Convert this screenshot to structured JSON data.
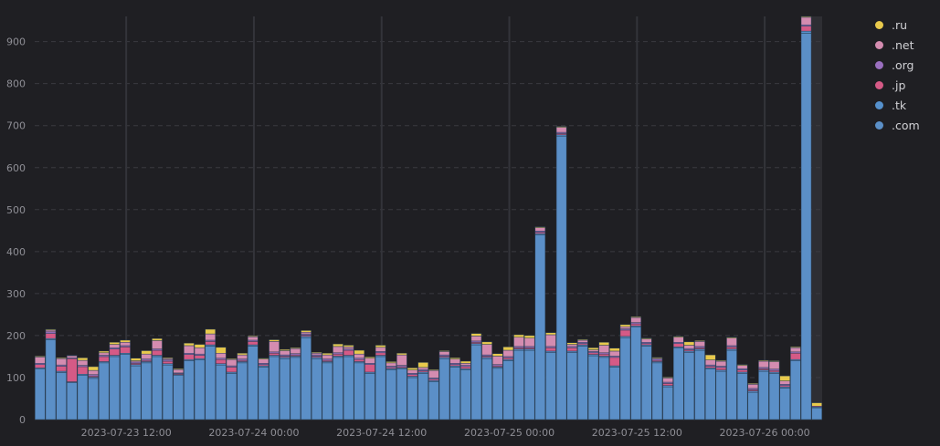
{
  "chart_data": {
    "type": "bar",
    "stacked": true,
    "title": "",
    "ylim": [
      0,
      960
    ],
    "yticks": [
      0,
      100,
      200,
      300,
      400,
      500,
      600,
      700,
      800,
      900
    ],
    "xticks": [
      "2023-07-23 12:00",
      "2023-07-24 00:00",
      "2023-07-24 12:00",
      "2023-07-25 00:00",
      "2023-07-25 12:00",
      "2023-07-26 00:00"
    ],
    "xtick_bar_index": [
      8,
      20,
      32,
      44,
      56,
      68
    ],
    "grid": true,
    "legend_position": "right",
    "highlighted_last_bar": true,
    "series": [
      {
        "name": ".com",
        "color": "#5b8fc7",
        "values": [
          120,
          190,
          112,
          88,
          105,
          98,
          135,
          150,
          155,
          128,
          135,
          150,
          130,
          105,
          140,
          142,
          175,
          130,
          110,
          135,
          175,
          125,
          150,
          145,
          148,
          195,
          145,
          135,
          148,
          150,
          135,
          110,
          150,
          118,
          120,
          100,
          110,
          90,
          145,
          125,
          118,
          178,
          145,
          122,
          140,
          165,
          165,
          440,
          160,
          675,
          160,
          175,
          152,
          148,
          125,
          195,
          220,
          175,
          135,
          78,
          170,
          160,
          165,
          120,
          115,
          165,
          110,
          65,
          115,
          110,
          75,
          140,
          920,
          28
        ]
      },
      {
        "name": ".tk",
        "color": "#5590cc",
        "values": [
          3,
          3,
          3,
          2,
          3,
          3,
          3,
          3,
          3,
          3,
          3,
          3,
          3,
          2,
          3,
          3,
          3,
          3,
          3,
          3,
          3,
          3,
          3,
          3,
          3,
          3,
          3,
          3,
          3,
          3,
          3,
          3,
          3,
          3,
          3,
          3,
          3,
          3,
          3,
          3,
          3,
          3,
          3,
          3,
          3,
          3,
          3,
          3,
          3,
          3,
          3,
          3,
          3,
          3,
          3,
          3,
          3,
          3,
          3,
          3,
          3,
          3,
          3,
          3,
          3,
          3,
          3,
          3,
          3,
          3,
          3,
          3,
          5,
          2
        ]
      },
      {
        "name": ".jp",
        "color": "#d55a86",
        "values": [
          8,
          12,
          12,
          55,
          18,
          3,
          12,
          15,
          15,
          3,
          3,
          12,
          6,
          2,
          12,
          8,
          8,
          10,
          12,
          3,
          8,
          3,
          5,
          3,
          3,
          3,
          3,
          3,
          5,
          12,
          5,
          18,
          6,
          3,
          3,
          4,
          3,
          3,
          3,
          3,
          5,
          3,
          3,
          3,
          4,
          3,
          3,
          3,
          8,
          3,
          8,
          3,
          4,
          5,
          20,
          15,
          5,
          3,
          3,
          5,
          8,
          3,
          3,
          4,
          6,
          5,
          5,
          3,
          3,
          4,
          3,
          15,
          12,
          2
        ]
      },
      {
        "name": ".org",
        "color": "#9a6fbf",
        "values": [
          3,
          4,
          3,
          2,
          3,
          3,
          3,
          3,
          3,
          3,
          3,
          3,
          3,
          2,
          3,
          3,
          3,
          3,
          3,
          3,
          3,
          3,
          3,
          3,
          3,
          3,
          3,
          3,
          3,
          3,
          3,
          3,
          3,
          3,
          3,
          3,
          3,
          3,
          3,
          3,
          3,
          3,
          3,
          3,
          3,
          3,
          3,
          3,
          3,
          3,
          3,
          3,
          3,
          3,
          3,
          3,
          3,
          3,
          3,
          3,
          3,
          3,
          3,
          3,
          3,
          3,
          3,
          3,
          3,
          3,
          3,
          3,
          3,
          0
        ]
      },
      {
        "name": ".net",
        "color": "#d48cb0",
        "values": [
          15,
          4,
          15,
          5,
          12,
          10,
          6,
          8,
          8,
          3,
          12,
          20,
          3,
          8,
          18,
          15,
          15,
          12,
          15,
          10,
          8,
          10,
          25,
          10,
          12,
          4,
          4,
          10,
          15,
          5,
          10,
          12,
          10,
          8,
          25,
          8,
          5,
          18,
          8,
          10,
          5,
          12,
          25,
          20,
          15,
          22,
          20,
          8,
          28,
          12,
          5,
          5,
          4,
          18,
          12,
          5,
          12,
          8,
          2,
          10,
          12,
          8,
          12,
          12,
          12,
          18,
          8,
          10,
          15,
          18,
          8,
          10,
          18,
          0
        ]
      },
      {
        "name": ".ru",
        "color": "#e8c94c",
        "values": [
          2,
          2,
          2,
          1,
          6,
          9,
          4,
          5,
          5,
          6,
          8,
          5,
          2,
          2,
          6,
          8,
          11,
          14,
          2,
          4,
          2,
          2,
          4,
          3,
          2,
          4,
          2,
          4,
          6,
          4,
          9,
          3,
          5,
          3,
          4,
          5,
          12,
          2,
          2,
          3,
          5,
          6,
          6,
          6,
          8,
          6,
          6,
          2,
          5,
          2,
          4,
          2,
          5,
          7,
          7,
          5,
          2,
          2,
          2,
          2,
          2,
          8,
          2,
          12,
          2,
          2,
          2,
          2,
          2,
          2,
          12,
          2,
          2,
          8
        ]
      }
    ]
  },
  "legend": [
    {
      "label": ".ru",
      "color": "#e8c94c"
    },
    {
      "label": ".net",
      "color": "#d48cb0"
    },
    {
      "label": ".org",
      "color": "#9a6fbf"
    },
    {
      "label": ".jp",
      "color": "#d55a86"
    },
    {
      "label": ".tk",
      "color": "#5590cc"
    },
    {
      "label": ".com",
      "color": "#5b8fc7"
    }
  ]
}
